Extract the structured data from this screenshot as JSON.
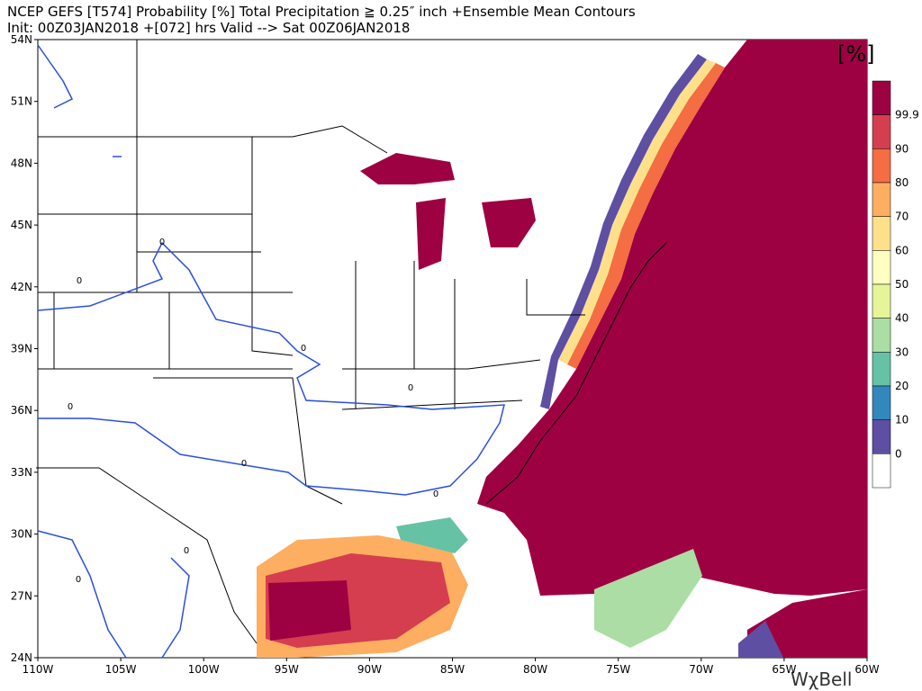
{
  "header": {
    "title": "NCEP GEFS [T574] Probability [%] Total Precipitation ≧ 0.25″ inch  +Ensemble Mean Contours",
    "subtitle": "Init: 00Z03JAN2018   +[072] hrs Valid --> Sat 00Z06JAN2018"
  },
  "map": {
    "lat_labels": [
      "54N",
      "51N",
      "48N",
      "45N",
      "42N",
      "39N",
      "36N",
      "33N",
      "30N",
      "27N",
      "24N"
    ],
    "lon_labels": [
      "110W",
      "105W",
      "100W",
      "95W",
      "90W",
      "85W",
      "80W",
      "75W",
      "70W",
      "65W",
      "60W"
    ],
    "contour_labels": [
      "0",
      "0",
      "0",
      "0",
      "0",
      "0",
      "0",
      "0",
      "0"
    ]
  },
  "colorbar": {
    "unit": "[%]",
    "labels": [
      "99.9",
      "90",
      "80",
      "70",
      "60",
      "50",
      "40",
      "30",
      "20",
      "10",
      "0"
    ],
    "colors": [
      "#9e0142",
      "#d53e4f",
      "#f46d43",
      "#fdae61",
      "#fee08b",
      "#ffffbf",
      "#e6f598",
      "#abdda4",
      "#66c2a5",
      "#3288bd",
      "#5e4fa2",
      "#ffffff"
    ]
  },
  "watermark": "WχBell"
}
